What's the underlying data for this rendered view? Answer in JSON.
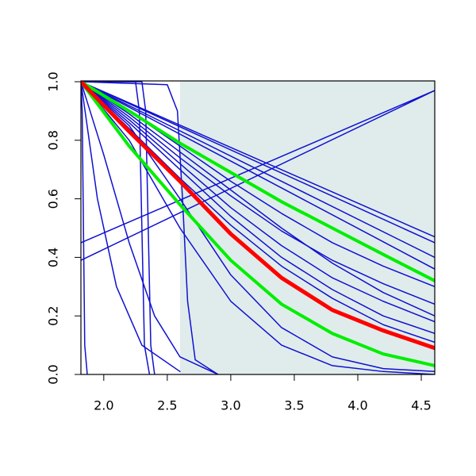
{
  "chart_data": {
    "type": "line",
    "xlim": [
      1.82,
      4.606
    ],
    "ylim": [
      0,
      1
    ],
    "xticks": [
      {
        "value": 2,
        "label": "2.0"
      },
      2.5,
      {
        "value": 3,
        "label": "3.0"
      },
      3.5,
      {
        "value": 4,
        "label": "4.0"
      },
      4.5
    ],
    "yticks": [
      {
        "value": 0,
        "label": "0.0"
      },
      0.2,
      0.4,
      0.6,
      0.8,
      {
        "value": 1,
        "label": "1.0"
      }
    ],
    "shade": {
      "x": [
        2.6,
        4.606
      ],
      "color": "#e0ecec"
    },
    "series": [
      {
        "color": "#1010d0",
        "x": [
          1.82,
          4.606
        ],
        "values": [
          1,
          0.47
        ]
      },
      {
        "color": "#1010d0",
        "x": [
          1.82,
          4.606
        ],
        "values": [
          1,
          0.45
        ]
      },
      {
        "color": "#1010d0",
        "x": [
          1.82,
          4.606
        ],
        "values": [
          1,
          0.4
        ]
      },
      {
        "color": "#1010d0",
        "x": [
          1.82,
          4.606
        ],
        "values": [
          1,
          0.36
        ]
      },
      {
        "color": "#1010d0",
        "x": [
          1.82,
          2.2,
          2.6,
          3.0,
          3.4,
          3.8,
          4.2,
          4.606
        ],
        "values": [
          1,
          0.9,
          0.78,
          0.66,
          0.55,
          0.45,
          0.37,
          0.3
        ]
      },
      {
        "color": "#1010d0",
        "x": [
          1.82,
          2.2,
          2.6,
          3.0,
          3.4,
          3.8,
          4.2,
          4.606
        ],
        "values": [
          1,
          0.88,
          0.74,
          0.61,
          0.49,
          0.39,
          0.31,
          0.24
        ]
      },
      {
        "color": "#1010d0",
        "x": [
          1.82,
          2.2,
          2.6,
          3.0,
          3.4,
          3.8,
          4.2,
          4.606
        ],
        "values": [
          1,
          0.87,
          0.72,
          0.57,
          0.44,
          0.33,
          0.25,
          0.18
        ]
      },
      {
        "color": "#1010d0",
        "x": [
          1.82,
          2.2,
          2.6,
          3.0,
          3.4,
          3.8,
          4.2,
          4.606
        ],
        "values": [
          1,
          0.86,
          0.7,
          0.54,
          0.4,
          0.29,
          0.2,
          0.14
        ]
      },
      {
        "color": "#1010d0",
        "x": [
          1.82,
          2.2,
          2.6,
          3.0,
          3.4,
          3.8,
          4.2,
          4.606
        ],
        "values": [
          1,
          0.84,
          0.67,
          0.51,
          0.37,
          0.26,
          0.17,
          0.11
        ]
      },
      {
        "color": "#1010d0",
        "x": [
          1.82,
          2.2,
          2.6,
          3.0,
          3.4,
          3.8,
          4.2,
          4.606
        ],
        "values": [
          1,
          0.89,
          0.76,
          0.63,
          0.5,
          0.38,
          0.28,
          0.2
        ]
      },
      {
        "color": "#1010d0",
        "x": [
          1.82,
          2.2,
          2.6,
          3.0,
          3.4,
          3.8,
          4.2,
          4.606
        ],
        "values": [
          1,
          0.85,
          0.6,
          0.34,
          0.16,
          0.06,
          0.02,
          0.01
        ]
      },
      {
        "color": "#1010d0",
        "x": [
          1.82,
          2.2,
          2.6,
          3.0,
          3.4,
          3.8,
          4.2,
          4.606
        ],
        "values": [
          1,
          0.8,
          0.5,
          0.25,
          0.1,
          0.03,
          0.01,
          0
        ]
      },
      {
        "color": "#1010d0",
        "x": [
          1.82,
          1.95,
          2.1,
          2.3,
          2.6
        ],
        "values": [
          1,
          0.6,
          0.3,
          0.1,
          0.01
        ]
      },
      {
        "color": "#1010d0",
        "x": [
          1.82,
          2.0,
          2.2,
          2.4,
          2.6,
          2.9
        ],
        "values": [
          1,
          0.75,
          0.45,
          0.2,
          0.06,
          0
        ]
      },
      {
        "color": "#1010d0",
        "x": [
          1.82,
          1.83,
          1.84,
          1.85,
          1.87
        ],
        "values": [
          1,
          0.9,
          0.5,
          0.1,
          0
        ]
      },
      {
        "color": "#1010d0",
        "x": [
          1.82,
          2.25,
          2.28,
          2.3,
          2.32,
          2.36
        ],
        "values": [
          1,
          1,
          0.9,
          0.5,
          0.1,
          0
        ]
      },
      {
        "color": "#1010d0",
        "x": [
          1.82,
          2.3,
          2.33,
          2.35,
          2.37,
          2.4
        ],
        "values": [
          1,
          1,
          0.9,
          0.5,
          0.1,
          0
        ]
      },
      {
        "color": "#1010d0",
        "x": [
          1.82,
          2.5,
          2.58,
          2.62,
          2.66,
          2.72,
          2.9
        ],
        "values": [
          1,
          0.99,
          0.9,
          0.6,
          0.25,
          0.05,
          0
        ]
      },
      {
        "color": "#1010d0",
        "x": [
          1.82,
          4.606
        ],
        "values": [
          0.45,
          0.97
        ]
      },
      {
        "color": "#1010d0",
        "x": [
          1.82,
          4.606
        ],
        "values": [
          0.39,
          0.97
        ]
      },
      {
        "color": "#00ee00",
        "width": 4,
        "x": [
          1.82,
          2.2,
          2.6,
          3.0,
          3.4,
          3.8,
          4.2,
          4.606
        ],
        "values": [
          1,
          0.9,
          0.79,
          0.69,
          0.59,
          0.5,
          0.41,
          0.32
        ]
      },
      {
        "color": "#00ee00",
        "width": 4,
        "x": [
          1.82,
          2.2,
          2.6,
          3.0,
          3.4,
          3.8,
          4.2,
          4.606
        ],
        "values": [
          1,
          0.78,
          0.58,
          0.39,
          0.24,
          0.14,
          0.07,
          0.03
        ]
      },
      {
        "color": "#ff0000",
        "width": 5,
        "x": [
          1.82,
          2.2,
          2.6,
          3.0,
          3.4,
          3.8,
          4.2,
          4.606
        ],
        "values": [
          1,
          0.83,
          0.66,
          0.48,
          0.33,
          0.22,
          0.15,
          0.09
        ]
      }
    ]
  }
}
